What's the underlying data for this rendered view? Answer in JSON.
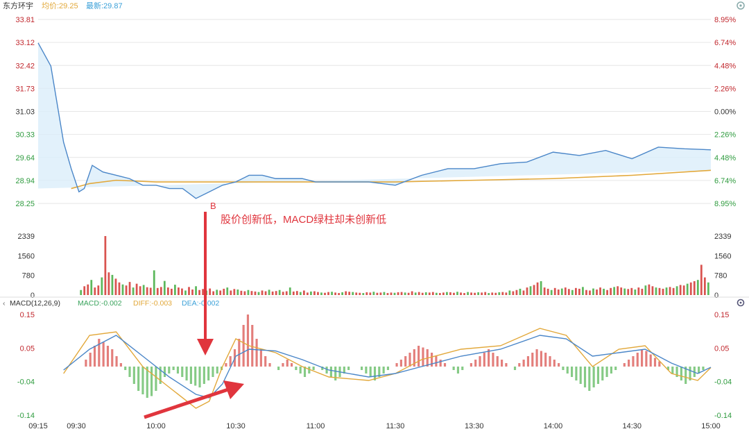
{
  "header": {
    "stock_name": "东方环宇",
    "avg_label": "均价:29.25",
    "latest_label": "最新:29.87",
    "avg_color": "#e2a83a",
    "latest_color": "#3aa0d8"
  },
  "macd_header": {
    "indicator": "MACD(12,26,9)",
    "macd_text": "MACD:-0.002",
    "diff_text": "DIFF:-0.003",
    "dea_text": "DEA:-0.002",
    "settings_icon": "gear-icon"
  },
  "annotation": {
    "marker": "B",
    "text": "股价创新低，MACD绿柱却未创新低",
    "color": "#e0353d"
  },
  "colors": {
    "price_line": "#4a86c8",
    "avg_line": "#e2a83a",
    "area_fill": "#dbeefa",
    "up_red": "#d9534f",
    "down_green": "#5cb85c",
    "neutral_black": "#222222",
    "price_labels_left": "#c1272d",
    "pct_up_color": "#c1272d",
    "pct_down_color": "#2e9b3e",
    "grid": "#e6e6e6",
    "arrow": "#e0353d"
  },
  "chart_data": [
    {
      "type": "line",
      "panel": "price",
      "x_labels": [
        "09:15",
        "09:30",
        "10:00",
        "10:30",
        "11:00",
        "11:30",
        "13:30",
        "14:00",
        "14:30",
        "15:00"
      ],
      "y_ticks": [
        "33.81",
        "33.12",
        "32.42",
        "31.73",
        "31.03",
        "30.33",
        "29.64",
        "28.94",
        "28.25"
      ],
      "pct_ticks": [
        "8.95%",
        "6.74%",
        "4.48%",
        "2.26%",
        "0.00%",
        "2.26%",
        "4.48%",
        "6.74%",
        "8.95%"
      ],
      "ylim": [
        28.25,
        33.81
      ],
      "series": [
        {
          "name": "最新",
          "x": [
            "09:15",
            "09:20",
            "09:25",
            "09:28",
            "09:31",
            "09:33",
            "09:36",
            "09:40",
            "09:45",
            "09:50",
            "09:55",
            "10:00",
            "10:05",
            "10:10",
            "10:15",
            "10:20",
            "10:25",
            "10:30",
            "10:35",
            "10:40",
            "10:45",
            "10:50",
            "10:55",
            "11:00",
            "11:10",
            "11:20",
            "11:30",
            "13:10",
            "13:20",
            "13:30",
            "13:40",
            "13:50",
            "14:00",
            "14:10",
            "14:20",
            "14:30",
            "14:40",
            "14:50",
            "15:00"
          ],
          "values": [
            33.1,
            32.4,
            30.1,
            29.3,
            28.6,
            28.7,
            29.4,
            29.2,
            29.1,
            29.0,
            28.8,
            28.8,
            28.7,
            28.7,
            28.4,
            28.6,
            28.8,
            28.9,
            29.1,
            29.1,
            29.0,
            29.0,
            29.0,
            28.9,
            28.9,
            28.9,
            28.8,
            29.1,
            29.3,
            29.3,
            29.45,
            29.5,
            29.8,
            29.7,
            29.85,
            29.6,
            29.95,
            29.9,
            29.87
          ]
        },
        {
          "name": "均价",
          "x": [
            "09:28",
            "09:35",
            "09:45",
            "10:00",
            "10:30",
            "11:00",
            "11:30",
            "13:30",
            "14:00",
            "14:30",
            "15:00"
          ],
          "values": [
            28.7,
            28.85,
            28.95,
            28.9,
            28.9,
            28.9,
            28.9,
            28.95,
            29.0,
            29.1,
            29.25
          ]
        }
      ]
    },
    {
      "type": "bar",
      "panel": "volume",
      "y_ticks": [
        "2339",
        "1560",
        "780",
        "0"
      ],
      "ylim": [
        0,
        2339
      ],
      "values": [
        0,
        0,
        0,
        0,
        0,
        0,
        0,
        0,
        0,
        0,
        0,
        0,
        200,
        350,
        420,
        600,
        300,
        380,
        700,
        2339,
        900,
        800,
        650,
        500,
        420,
        380,
        520,
        300,
        450,
        350,
        400,
        310,
        290,
        980,
        280,
        320,
        560,
        300,
        250,
        410,
        300,
        260,
        180,
        320,
        220,
        350,
        200,
        240,
        180,
        260,
        150,
        210,
        180,
        250,
        300,
        180,
        240,
        220,
        170,
        150,
        200,
        160,
        140,
        120,
        180,
        150,
        210,
        140,
        160,
        200,
        130,
        150,
        300,
        140,
        160,
        120,
        180,
        100,
        140,
        150,
        120,
        100,
        90,
        120,
        130,
        100,
        80,
        110,
        150,
        130,
        120,
        100,
        90,
        80,
        110,
        100,
        130,
        90,
        100,
        120,
        80,
        100,
        90,
        110,
        120,
        100,
        90,
        150,
        100,
        120,
        90,
        110,
        100,
        120,
        90,
        80,
        100,
        120,
        110,
        90,
        130,
        100,
        80,
        120,
        100,
        90,
        110,
        100,
        120,
        80,
        100,
        90,
        110,
        120,
        100,
        180,
        150,
        200,
        250,
        180,
        300,
        350,
        400,
        500,
        550,
        300,
        250,
        200,
        280,
        220,
        260,
        300,
        240,
        200,
        280,
        250,
        320,
        200,
        180,
        260,
        220,
        300,
        250,
        200,
        280,
        320,
        350,
        300,
        260,
        240,
        280,
        220,
        300,
        250,
        380,
        420,
        350,
        300,
        280,
        250,
        300,
        320,
        280,
        350,
        400,
        380,
        450,
        500,
        550,
        600,
        1200,
        700,
        500
      ]
    },
    {
      "type": "bar",
      "panel": "macd",
      "y_ticks": [
        "0.15",
        "0.05",
        "-0.04",
        "-0.14"
      ],
      "ylim": [
        -0.14,
        0.15
      ],
      "values": [
        0,
        0.02,
        0.04,
        0.06,
        0.08,
        0.07,
        0.06,
        0.05,
        0.03,
        0.01,
        -0.01,
        -0.03,
        -0.05,
        -0.07,
        -0.08,
        -0.09,
        -0.085,
        -0.07,
        -0.05,
        -0.03,
        -0.02,
        -0.01,
        -0.02,
        -0.03,
        -0.04,
        -0.05,
        -0.055,
        -0.06,
        -0.05,
        -0.04,
        -0.03,
        -0.02,
        -0.01,
        0.01,
        0.03,
        0.05,
        0.08,
        0.12,
        0.15,
        0.12,
        0.08,
        0.05,
        0.03,
        0.01,
        0.0,
        -0.01,
        0.01,
        0.02,
        0.01,
        -0.01,
        -0.02,
        -0.03,
        -0.02,
        -0.01,
        0.0,
        -0.01,
        -0.02,
        -0.03,
        -0.04,
        -0.03,
        -0.02,
        -0.01,
        0.0,
        0.0,
        -0.01,
        -0.02,
        -0.03,
        -0.04,
        -0.03,
        -0.02,
        -0.01,
        0.0,
        0.01,
        0.02,
        0.03,
        0.04,
        0.05,
        0.06,
        0.055,
        0.05,
        0.04,
        0.03,
        0.02,
        0.01,
        0.0,
        -0.01,
        -0.02,
        -0.01,
        0.0,
        0.01,
        0.02,
        0.03,
        0.04,
        0.05,
        0.04,
        0.03,
        0.02,
        0.01,
        0.0,
        -0.01,
        0.01,
        0.02,
        0.03,
        0.04,
        0.05,
        0.045,
        0.04,
        0.03,
        0.02,
        0.01,
        -0.01,
        -0.02,
        -0.03,
        -0.04,
        -0.05,
        -0.06,
        -0.07,
        -0.06,
        -0.05,
        -0.04,
        -0.03,
        -0.02,
        -0.01,
        0.0,
        0.01,
        0.02,
        0.03,
        0.04,
        0.05,
        0.045,
        0.035,
        0.025,
        0.015,
        0.0,
        -0.01,
        -0.02,
        -0.03,
        -0.04,
        -0.05,
        -0.04,
        -0.03,
        -0.02,
        -0.01,
        0.0
      ],
      "series": [
        {
          "name": "DIFF",
          "x": [
            "09:25",
            "09:35",
            "09:45",
            "09:55",
            "10:05",
            "10:15",
            "10:20",
            "10:25",
            "10:30",
            "10:35",
            "10:45",
            "10:55",
            "11:05",
            "11:20",
            "11:30",
            "13:10",
            "13:25",
            "13:40",
            "13:55",
            "14:05",
            "14:15",
            "14:25",
            "14:35",
            "14:45",
            "14:55",
            "15:00"
          ],
          "values": [
            -0.02,
            0.09,
            0.1,
            0.0,
            -0.06,
            -0.12,
            -0.1,
            0.0,
            0.08,
            0.06,
            0.04,
            0.0,
            -0.03,
            -0.04,
            -0.02,
            0.02,
            0.05,
            0.06,
            0.11,
            0.09,
            0.0,
            0.05,
            0.06,
            -0.02,
            -0.04,
            -0.003
          ]
        },
        {
          "name": "DEA",
          "x": [
            "09:25",
            "09:35",
            "09:45",
            "09:55",
            "10:05",
            "10:15",
            "10:20",
            "10:25",
            "10:30",
            "10:35",
            "10:45",
            "10:55",
            "11:05",
            "11:20",
            "11:30",
            "13:10",
            "13:25",
            "13:40",
            "13:55",
            "14:05",
            "14:15",
            "14:25",
            "14:35",
            "14:45",
            "14:55",
            "15:00"
          ],
          "values": [
            -0.01,
            0.05,
            0.09,
            0.03,
            -0.03,
            -0.08,
            -0.09,
            -0.05,
            0.03,
            0.05,
            0.045,
            0.02,
            -0.01,
            -0.03,
            -0.02,
            0.0,
            0.03,
            0.05,
            0.09,
            0.08,
            0.03,
            0.04,
            0.05,
            0.01,
            -0.02,
            -0.002
          ]
        }
      ]
    }
  ]
}
